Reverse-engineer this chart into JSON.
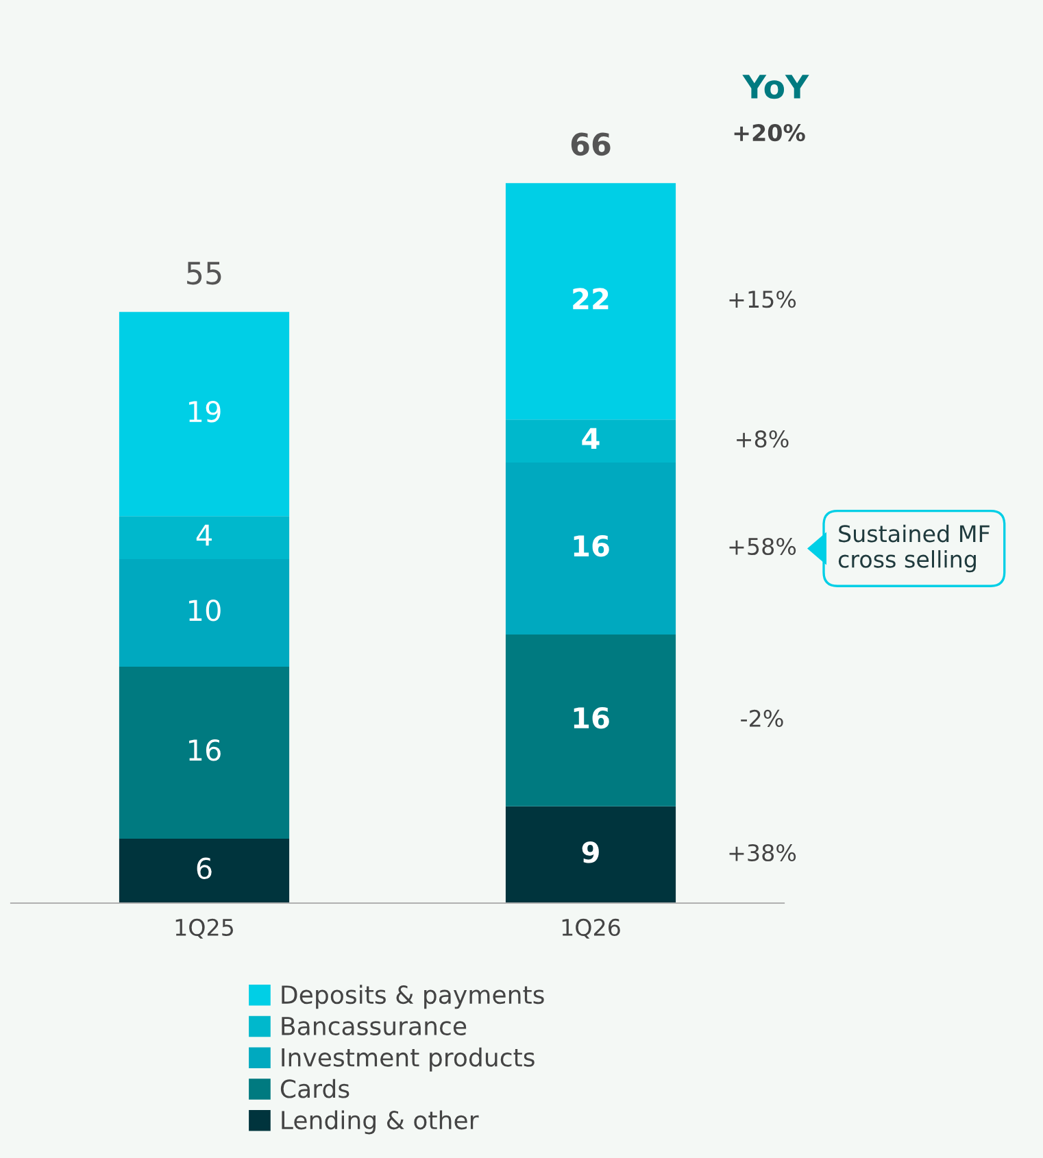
{
  "chart_data": {
    "type": "bar",
    "stacked": true,
    "categories": [
      "1Q25",
      "1Q26"
    ],
    "series": [
      {
        "name": "Lending & other",
        "color": "#00343d",
        "values": [
          6,
          9
        ]
      },
      {
        "name": "Cards",
        "color": "#007a80",
        "values": [
          16,
          16
        ]
      },
      {
        "name": "Investment products",
        "color": "#00a9bf",
        "values": [
          10,
          16
        ]
      },
      {
        "name": "Bancassurance",
        "color": "#00b8cc",
        "values": [
          4,
          4
        ]
      },
      {
        "name": "Deposits & payments",
        "color": "#00cfe6",
        "values": [
          19,
          22
        ]
      }
    ],
    "data_labels": true,
    "totals": [
      "55",
      "66"
    ],
    "legend": "bottom",
    "grid": false,
    "annotations": [
      "YoY",
      "+20%",
      "+15%",
      "+8%",
      "+58%",
      "-2%",
      "+38%",
      "Sustained MF\ncross selling"
    ]
  }
}
